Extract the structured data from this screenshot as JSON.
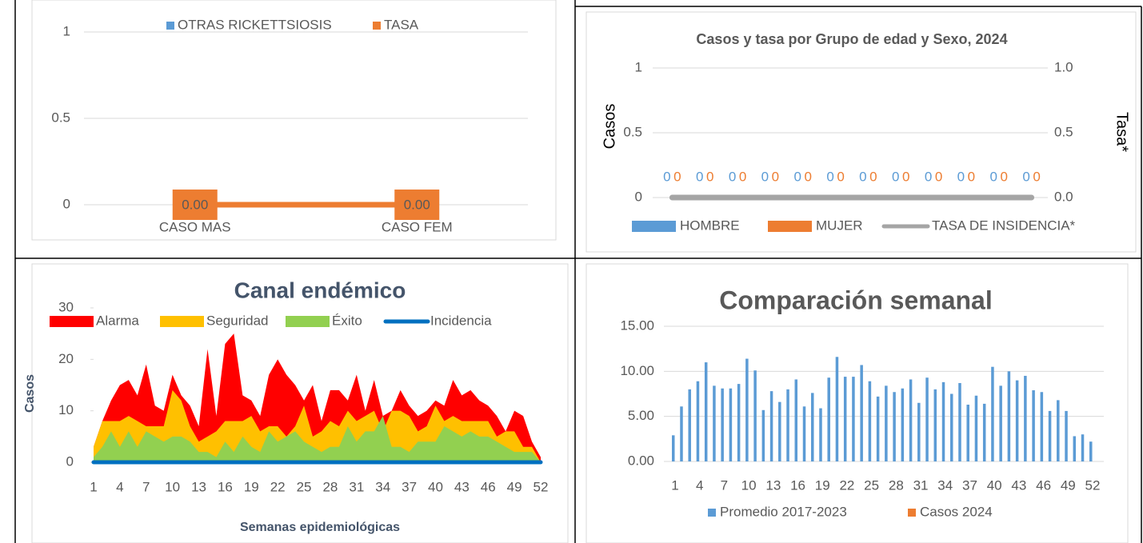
{
  "chart_data": [
    {
      "type": "bar",
      "categories": [
        "CASO MAS",
        "CASO FEM"
      ],
      "series": [
        {
          "name": "OTRAS RICKETTSIOSIS",
          "color": "#5b9bd5",
          "values": [
            0,
            0
          ]
        },
        {
          "name": "TASA",
          "color": "#ed7d31",
          "type": "line",
          "values": [
            0,
            0
          ],
          "value_labels": [
            "0.00",
            "0.00"
          ]
        }
      ],
      "ylim": [
        0,
        1
      ],
      "yticks": [
        0,
        0.5,
        1
      ],
      "grid": true,
      "legend": "top"
    },
    {
      "type": "bar",
      "title": "Casos y tasa por Grupo de edad y Sexo, 2024",
      "y_label": "Casos",
      "y2_label": "Tasa*",
      "categories": [
        null,
        null,
        null,
        null,
        null,
        null,
        null,
        null,
        null,
        null,
        null,
        null
      ],
      "series": [
        {
          "name": "HOMBRE",
          "color": "#5b9bd5",
          "data_labels": true,
          "values": [
            0,
            0,
            0,
            0,
            0,
            0,
            0,
            0,
            0,
            0,
            0,
            0
          ]
        },
        {
          "name": "MUJER",
          "color": "#ed7d31",
          "data_labels": true,
          "values": [
            0,
            0,
            0,
            0,
            0,
            0,
            0,
            0,
            0,
            0,
            0,
            0
          ]
        },
        {
          "name": "TASA DE INSIDENCIA*",
          "color": "#a5a5a5",
          "type": "line",
          "axis": "y2",
          "values": [
            0,
            0,
            0,
            0,
            0,
            0,
            0,
            0,
            0,
            0,
            0,
            0
          ]
        }
      ],
      "ylim": [
        0,
        1
      ],
      "yticks": [
        0,
        0.5,
        1
      ],
      "y2lim": [
        0,
        1
      ],
      "y2ticks": [
        {
          "value": 0,
          "label": "0.0"
        },
        {
          "value": 0.5,
          "label": "0.5"
        },
        {
          "value": 1,
          "label": "1.0"
        }
      ],
      "grid": true,
      "legend": "bottom"
    },
    {
      "type": "area",
      "title": "Canal endémico",
      "x_label": "Semanas epidemiológicas",
      "y_label": "Casos",
      "categories": [
        1,
        null,
        null,
        4,
        null,
        null,
        7,
        null,
        null,
        10,
        null,
        null,
        13,
        null,
        null,
        16,
        null,
        null,
        19,
        null,
        null,
        22,
        null,
        null,
        25,
        null,
        null,
        28,
        null,
        null,
        31,
        null,
        null,
        34,
        null,
        null,
        37,
        null,
        null,
        40,
        null,
        null,
        43,
        null,
        null,
        46,
        null,
        null,
        49,
        null,
        null,
        52
      ],
      "series": [
        {
          "name": "Alarma",
          "color": "#ff0000",
          "values": [
            3,
            8,
            12,
            15,
            16,
            13,
            19,
            11,
            10,
            17,
            13,
            11,
            7,
            22,
            9,
            23,
            25,
            13,
            12,
            9,
            17,
            20,
            17,
            15,
            12,
            15,
            8,
            14,
            14,
            12,
            17,
            10,
            16,
            9,
            10,
            14,
            11,
            9,
            10,
            12,
            11,
            16,
            13,
            14,
            12,
            11,
            9,
            6,
            10,
            9,
            4,
            1
          ]
        },
        {
          "name": "Seguridad",
          "color": "#ffc000",
          "values": [
            3,
            8,
            8,
            8,
            9,
            8,
            7,
            7,
            7,
            14,
            12,
            7,
            4,
            5,
            6,
            8,
            8,
            8,
            9,
            6,
            7,
            7,
            5,
            7,
            11,
            5,
            6,
            8,
            7,
            10,
            8,
            9,
            10,
            6,
            10,
            10,
            9,
            6,
            7,
            11,
            8,
            9,
            8,
            8,
            8,
            8,
            5,
            6,
            6,
            3,
            3,
            0
          ]
        },
        {
          "name": "Éxito",
          "color": "#92d050",
          "values": [
            1,
            3,
            6,
            3,
            6,
            3,
            6,
            5,
            4,
            5,
            5,
            4,
            2,
            2,
            1,
            4,
            2,
            5,
            3,
            2,
            6,
            4,
            5,
            6,
            4,
            3,
            2,
            3,
            3,
            7,
            4,
            6,
            6,
            9,
            3,
            3,
            2,
            4,
            4,
            4,
            7,
            6,
            5,
            6,
            5,
            5,
            4,
            3,
            2,
            2,
            2,
            0
          ]
        },
        {
          "name": "Incidencia",
          "color": "#0070c0",
          "type": "line",
          "values": [
            0,
            0,
            0,
            0,
            0,
            0,
            0,
            0,
            0,
            0,
            0,
            0,
            0,
            0,
            0,
            0,
            0,
            0,
            0,
            0,
            0,
            0,
            0,
            0,
            0,
            0,
            0,
            0,
            0,
            0,
            0,
            0,
            0,
            0,
            0,
            0,
            0,
            0,
            0,
            0,
            0,
            0,
            0,
            0,
            0,
            0,
            0,
            0,
            0,
            0,
            0,
            0
          ]
        }
      ],
      "ylim": [
        0,
        30
      ],
      "yticks": [
        0,
        10,
        20,
        30
      ],
      "grid": false,
      "legend": "top"
    },
    {
      "type": "bar",
      "title": "Comparación semanal",
      "categories": [
        1,
        null,
        null,
        4,
        null,
        null,
        7,
        null,
        null,
        10,
        null,
        null,
        13,
        null,
        null,
        16,
        null,
        null,
        19,
        null,
        null,
        22,
        null,
        null,
        25,
        null,
        null,
        28,
        null,
        null,
        31,
        null,
        null,
        34,
        null,
        null,
        37,
        null,
        null,
        40,
        null,
        null,
        43,
        null,
        null,
        46,
        null,
        null,
        49,
        null,
        null,
        52
      ],
      "series": [
        {
          "name": "Promedio 2017-2023",
          "color": "#5b9bd5",
          "values": [
            2.9,
            6.1,
            8.0,
            8.9,
            11.0,
            8.4,
            8.1,
            8.1,
            8.6,
            11.4,
            10.1,
            5.7,
            7.8,
            6.6,
            8.0,
            9.1,
            6.1,
            7.6,
            5.9,
            9.3,
            11.6,
            9.4,
            9.4,
            10.7,
            8.9,
            7.2,
            8.4,
            7.7,
            8.1,
            9.1,
            6.5,
            9.3,
            8.0,
            8.8,
            7.5,
            8.7,
            6.3,
            7.3,
            6.4,
            10.5,
            8.4,
            10.0,
            9.0,
            9.5,
            7.9,
            7.7,
            5.6,
            6.8,
            5.6,
            2.8,
            3.0,
            2.2
          ]
        },
        {
          "name": "Casos 2024",
          "color": "#ed7d31",
          "values": [
            0,
            0,
            0,
            0,
            0,
            0,
            0,
            0,
            0,
            0,
            0,
            0,
            0,
            0,
            0,
            0,
            0,
            0,
            0,
            0,
            0,
            0,
            0,
            0,
            0,
            0,
            0,
            0,
            0,
            0,
            0,
            0,
            0,
            0,
            0,
            0,
            0,
            0,
            0,
            0,
            0,
            0,
            0,
            0,
            0,
            0,
            0,
            0,
            0,
            0,
            0,
            0
          ]
        }
      ],
      "ylim": [
        0,
        15
      ],
      "yticks": [
        {
          "value": 0,
          "label": "0.00"
        },
        {
          "value": 5,
          "label": "5.00"
        },
        {
          "value": 10,
          "label": "10.00"
        },
        {
          "value": 15,
          "label": "15.00"
        }
      ],
      "grid": true,
      "legend": "bottom"
    }
  ]
}
